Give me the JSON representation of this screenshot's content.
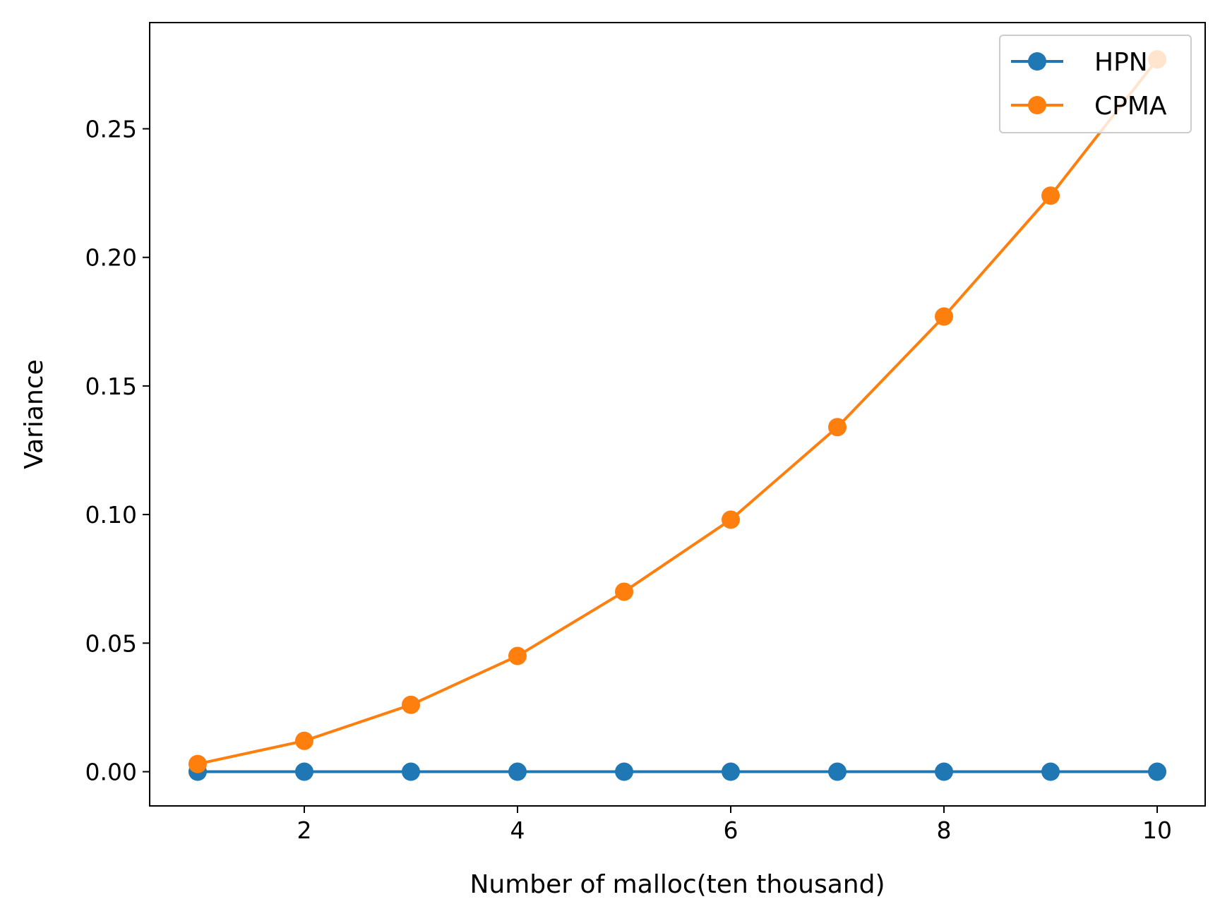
{
  "chart_data": {
    "type": "line",
    "title": "",
    "xlabel": "Number of malloc(ten thousand)",
    "ylabel": "Variance",
    "x": [
      1,
      2,
      3,
      4,
      5,
      6,
      7,
      8,
      9,
      10
    ],
    "xlim": [
      0.55,
      10.45
    ],
    "ylim": [
      -0.0133,
      0.2913
    ],
    "xticks": [
      2,
      4,
      6,
      8,
      10
    ],
    "xtick_labels": [
      "2",
      "4",
      "6",
      "8",
      "10"
    ],
    "yticks": [
      0.0,
      0.05,
      0.1,
      0.15,
      0.2,
      0.25
    ],
    "ytick_labels": [
      "0.00",
      "0.05",
      "0.10",
      "0.15",
      "0.20",
      "0.25"
    ],
    "grid": false,
    "legend": "top-right",
    "series": [
      {
        "name": "HPN",
        "color": "#1f77b4",
        "marker": "circle",
        "values": [
          0.0,
          0.0,
          0.0,
          0.0,
          0.0,
          0.0,
          0.0,
          0.0,
          0.0,
          0.0
        ]
      },
      {
        "name": "CPMA",
        "color": "#ff7f0e",
        "marker": "circle",
        "values": [
          0.003,
          0.012,
          0.026,
          0.045,
          0.07,
          0.098,
          0.134,
          0.177,
          0.224,
          0.277
        ]
      }
    ]
  }
}
